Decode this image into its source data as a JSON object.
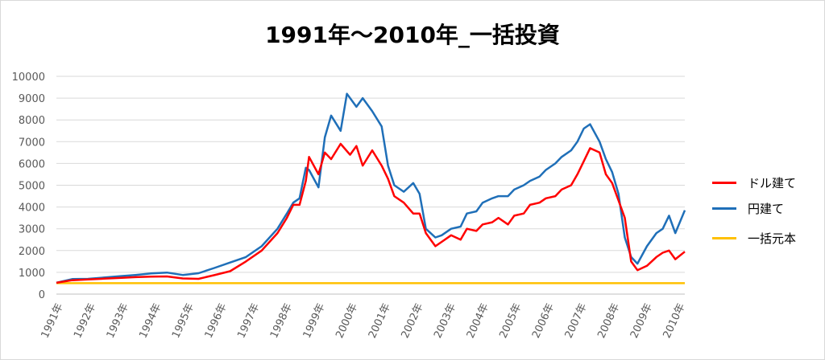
{
  "chart_data": {
    "type": "line",
    "title": "1991年～2010年_一括投資",
    "ylim": [
      0,
      10000
    ],
    "yticks": [
      0,
      1000,
      2000,
      3000,
      4000,
      5000,
      6000,
      7000,
      8000,
      9000,
      10000
    ],
    "xlim": [
      1991.0,
      2010.9
    ],
    "x_tick_labels": [
      "1991年",
      "1992年",
      "1993年",
      "1994年",
      "1995年",
      "1996年",
      "1997年",
      "1998年",
      "1999年",
      "2000年",
      "2001年",
      "2002年",
      "2003年",
      "2004年",
      "2005年",
      "2006年",
      "2007年",
      "2008年",
      "2009年",
      "2010年"
    ],
    "grid": true,
    "legend_position": "right",
    "series": [
      {
        "name": "ドル建て",
        "color": "#ff0000",
        "x": [
          1991.0,
          1991.5,
          1992.0,
          1992.5,
          1993.0,
          1993.5,
          1994.0,
          1994.5,
          1995.0,
          1995.5,
          1996.0,
          1996.5,
          1997.0,
          1997.5,
          1998.0,
          1998.3,
          1998.5,
          1998.7,
          1998.9,
          1999.0,
          1999.3,
          1999.5,
          1999.7,
          2000.0,
          2000.3,
          2000.5,
          2000.7,
          2001.0,
          2001.3,
          2001.5,
          2001.7,
          2002.0,
          2002.3,
          2002.5,
          2002.7,
          2003.0,
          2003.2,
          2003.5,
          2003.8,
          2004.0,
          2004.3,
          2004.5,
          2004.8,
          2005.0,
          2005.3,
          2005.5,
          2005.8,
          2006.0,
          2006.3,
          2006.5,
          2006.8,
          2007.0,
          2007.3,
          2007.5,
          2007.7,
          2007.9,
          2008.2,
          2008.4,
          2008.6,
          2008.8,
          2009.0,
          2009.2,
          2009.4,
          2009.7,
          2010.0,
          2010.2,
          2010.4,
          2010.6,
          2010.9
        ],
        "values": [
          520,
          640,
          670,
          710,
          740,
          780,
          800,
          810,
          720,
          700,
          870,
          1050,
          1500,
          2000,
          2800,
          3500,
          4100,
          4100,
          5200,
          6300,
          5500,
          6500,
          6200,
          6900,
          6400,
          6800,
          5900,
          6600,
          5900,
          5300,
          4500,
          4200,
          3700,
          3700,
          2800,
          2200,
          2400,
          2700,
          2500,
          3000,
          2900,
          3200,
          3300,
          3500,
          3200,
          3600,
          3700,
          4100,
          4200,
          4400,
          4500,
          4800,
          5000,
          5500,
          6100,
          6700,
          6500,
          5500,
          5100,
          4300,
          3500,
          1500,
          1100,
          1300,
          1700,
          1900,
          2000,
          1600,
          1950
        ]
      },
      {
        "name": "円建て",
        "color": "#1f6fb8",
        "x": [
          1991.0,
          1991.5,
          1992.0,
          1992.5,
          1993.0,
          1993.5,
          1994.0,
          1994.5,
          1995.0,
          1995.5,
          1996.0,
          1996.5,
          1997.0,
          1997.5,
          1998.0,
          1998.3,
          1998.5,
          1998.7,
          1998.9,
          1999.0,
          1999.3,
          1999.5,
          1999.7,
          2000.0,
          2000.2,
          2000.5,
          2000.7,
          2001.0,
          2001.3,
          2001.5,
          2001.7,
          2002.0,
          2002.3,
          2002.5,
          2002.7,
          2003.0,
          2003.2,
          2003.5,
          2003.8,
          2004.0,
          2004.3,
          2004.5,
          2004.8,
          2005.0,
          2005.3,
          2005.5,
          2005.8,
          2006.0,
          2006.3,
          2006.5,
          2006.8,
          2007.0,
          2007.3,
          2007.5,
          2007.7,
          2007.9,
          2008.2,
          2008.4,
          2008.6,
          2008.8,
          2009.0,
          2009.2,
          2009.4,
          2009.7,
          2010.0,
          2010.2,
          2010.4,
          2010.6,
          2010.9
        ],
        "values": [
          520,
          690,
          700,
          760,
          820,
          880,
          950,
          990,
          880,
          960,
          1200,
          1450,
          1700,
          2200,
          3000,
          3700,
          4200,
          4400,
          5800,
          5700,
          4900,
          7200,
          8200,
          7500,
          9200,
          8600,
          9000,
          8400,
          7700,
          5900,
          5000,
          4700,
          5100,
          4600,
          3000,
          2600,
          2700,
          3000,
          3100,
          3700,
          3800,
          4200,
          4400,
          4500,
          4500,
          4800,
          5000,
          5200,
          5400,
          5700,
          6000,
          6300,
          6600,
          7000,
          7600,
          7800,
          7000,
          6200,
          5600,
          4600,
          2600,
          1700,
          1400,
          2200,
          2800,
          3000,
          3600,
          2800,
          3850
        ]
      },
      {
        "name": "一括元本",
        "color": "#ffc000",
        "x": [
          1991.0,
          2010.9
        ],
        "values": [
          500,
          500
        ]
      }
    ]
  }
}
